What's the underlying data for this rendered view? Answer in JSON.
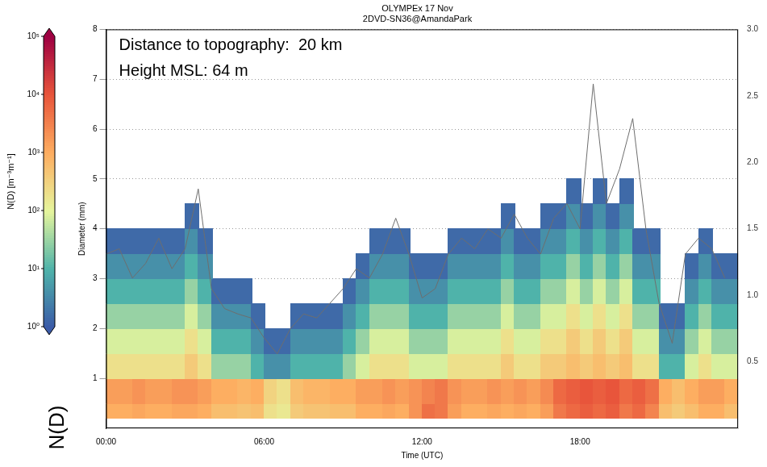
{
  "chart_data": {
    "type": "heatmap",
    "title": "OLYMPEx 17 Nov",
    "subtitle": "2DVD-SN36@AmandaPark",
    "annotations": [
      "Distance to topography:  20 km",
      "Height MSL: 64 m"
    ],
    "side_label": "N(D)",
    "x_label": "Time (UTC)",
    "y_label": "Diameter (mm)",
    "xlim": [
      0,
      24
    ],
    "xticks": [
      {
        "value": 0,
        "label": "00:00"
      },
      {
        "value": 6,
        "label": "06:00"
      },
      {
        "value": 12,
        "label": "12:00"
      },
      {
        "value": 18,
        "label": "18:00"
      }
    ],
    "ylim": [
      0,
      8
    ],
    "yticks": [
      1,
      2,
      3,
      4,
      5,
      6,
      7,
      8
    ],
    "y2lim": [
      0,
      3
    ],
    "y2ticks": [
      0.5,
      {
        "value": 1,
        "label": "1.0"
      },
      1.5,
      {
        "value": 2,
        "label": "2.0"
      },
      2.5,
      {
        "value": 3,
        "label": "3.0"
      }
    ],
    "grid": "y",
    "x_edges": [
      0,
      0.5,
      1,
      1.5,
      2,
      2.5,
      3,
      3.5,
      4,
      4.5,
      5,
      5.5,
      6,
      6.5,
      7,
      7.5,
      8,
      8.5,
      9,
      9.5,
      10,
      10.5,
      11,
      11.5,
      12,
      12.5,
      13,
      13.5,
      14,
      14.5,
      15,
      15.5,
      16,
      16.5,
      17,
      17.5,
      18,
      18.5,
      19,
      19.5,
      20,
      20.5,
      21,
      21.5,
      22,
      22.5,
      23,
      23.5,
      24
    ],
    "y_edges": [
      0.2,
      0.5,
      1,
      1.5,
      2,
      2.5,
      3,
      3.5,
      4,
      4.5,
      5
    ],
    "z": [
      [
        1000,
        1000,
        1200,
        1000,
        1000,
        1200,
        1200,
        1000,
        600,
        600,
        500,
        600,
        200,
        150,
        400,
        500,
        500,
        600,
        600,
        1000,
        1000,
        1200,
        1000,
        2000,
        5000,
        4000,
        1500,
        1000,
        1000,
        1200,
        1000,
        1200,
        1000,
        1500,
        4000,
        6000,
        8000,
        6000,
        8000,
        4000,
        6000,
        3000,
        600,
        400,
        600,
        1000,
        1000,
        600
      ],
      [
        1500,
        1500,
        2000,
        1500,
        1500,
        2000,
        2000,
        1500,
        1000,
        1000,
        800,
        1000,
        300,
        200,
        600,
        800,
        800,
        1000,
        1000,
        1500,
        1500,
        2000,
        1500,
        2000,
        3000,
        4000,
        2000,
        1500,
        1500,
        2000,
        1500,
        2000,
        1500,
        2500,
        6000,
        8000,
        10000,
        8000,
        10000,
        6000,
        8000,
        5000,
        1000,
        600,
        1000,
        1500,
        1500,
        1000
      ],
      [
        200,
        200,
        200,
        200,
        200,
        200,
        400,
        200,
        30,
        30,
        30,
        10,
        4,
        4,
        10,
        10,
        10,
        10,
        30,
        80,
        200,
        200,
        200,
        80,
        80,
        80,
        200,
        200,
        200,
        200,
        400,
        200,
        200,
        400,
        400,
        600,
        400,
        600,
        400,
        600,
        200,
        200,
        10,
        10,
        80,
        200,
        80,
        80
      ],
      [
        80,
        80,
        80,
        80,
        80,
        80,
        200,
        80,
        10,
        10,
        10,
        4,
        1.5,
        1.5,
        4,
        4,
        4,
        4,
        10,
        30,
        80,
        80,
        80,
        30,
        30,
        30,
        80,
        80,
        80,
        80,
        200,
        80,
        80,
        200,
        200,
        400,
        200,
        400,
        200,
        400,
        80,
        80,
        4,
        4,
        30,
        80,
        30,
        30
      ],
      [
        30,
        30,
        30,
        30,
        30,
        30,
        80,
        30,
        4,
        4,
        4,
        1.5,
        null,
        null,
        1.5,
        1.5,
        1.5,
        1.5,
        4,
        10,
        30,
        30,
        30,
        10,
        10,
        10,
        30,
        30,
        30,
        30,
        80,
        30,
        30,
        80,
        80,
        200,
        80,
        200,
        80,
        200,
        30,
        30,
        1.5,
        1.5,
        10,
        30,
        10,
        10
      ],
      [
        10,
        10,
        10,
        10,
        10,
        10,
        30,
        10,
        1.5,
        1.5,
        1.5,
        null,
        null,
        null,
        null,
        null,
        null,
        null,
        1.5,
        4,
        10,
        10,
        10,
        4,
        4,
        4,
        10,
        10,
        10,
        10,
        30,
        10,
        10,
        30,
        30,
        80,
        30,
        80,
        30,
        80,
        10,
        10,
        null,
        null,
        4,
        10,
        4,
        4
      ],
      [
        4,
        4,
        4,
        4,
        4,
        4,
        10,
        4,
        null,
        null,
        null,
        null,
        null,
        null,
        null,
        null,
        null,
        null,
        null,
        1.5,
        4,
        4,
        4,
        1.5,
        1.5,
        1.5,
        4,
        4,
        4,
        4,
        10,
        4,
        4,
        10,
        10,
        30,
        10,
        30,
        10,
        30,
        4,
        4,
        null,
        null,
        1.5,
        4,
        1.5,
        1.5
      ],
      [
        1.5,
        1.5,
        1.5,
        1.5,
        1.5,
        1.5,
        4,
        1.5,
        null,
        null,
        null,
        null,
        null,
        null,
        null,
        null,
        null,
        null,
        null,
        null,
        1.5,
        1.5,
        1.5,
        null,
        null,
        null,
        1.5,
        1.5,
        1.5,
        1.5,
        4,
        1.5,
        1.5,
        4,
        4,
        10,
        4,
        10,
        4,
        10,
        1.5,
        1.5,
        null,
        null,
        null,
        1.5,
        null,
        null
      ],
      [
        null,
        null,
        null,
        null,
        null,
        null,
        1.5,
        null,
        null,
        null,
        null,
        null,
        null,
        null,
        null,
        null,
        null,
        null,
        null,
        null,
        null,
        null,
        null,
        null,
        null,
        null,
        null,
        null,
        null,
        null,
        1.5,
        null,
        null,
        1.5,
        1.5,
        4,
        1.5,
        4,
        1.5,
        4,
        null,
        null,
        null,
        null,
        null,
        null,
        null,
        null
      ],
      [
        null,
        null,
        null,
        null,
        null,
        null,
        null,
        null,
        null,
        null,
        null,
        null,
        null,
        null,
        null,
        null,
        null,
        null,
        null,
        null,
        null,
        null,
        null,
        null,
        null,
        null,
        null,
        null,
        null,
        null,
        null,
        null,
        null,
        null,
        null,
        1.5,
        null,
        1.5,
        null,
        1.5,
        null,
        null,
        null,
        null,
        null,
        null,
        null,
        null
      ]
    ],
    "colorbar": {
      "label": "N(D) [m⁻³m⁻¹]",
      "log": true,
      "range": [
        1,
        100000
      ],
      "ticks": [
        {
          "value": 1,
          "label": "10⁰"
        },
        {
          "value": 10,
          "label": "10¹"
        },
        {
          "value": 100,
          "label": "10²"
        },
        {
          "value": 1000,
          "label": "10³"
        },
        {
          "value": 10000,
          "label": "10⁴"
        },
        {
          "value": 100000,
          "label": "10⁵"
        }
      ]
    },
    "line": {
      "type": "line",
      "color": "#6e6e6e",
      "axis": "y2",
      "x": [
        0,
        0.5,
        1,
        1.5,
        2,
        2.5,
        3,
        3.5,
        4,
        4.5,
        5,
        5.5,
        6,
        6.5,
        7,
        7.5,
        8,
        8.5,
        9,
        9.5,
        10,
        10.5,
        11,
        11.5,
        12,
        12.5,
        13,
        13.5,
        14,
        14.5,
        15,
        15.5,
        16,
        16.5,
        17,
        17.5,
        18,
        18.5,
        19,
        19.5,
        20,
        20.5,
        21,
        21.5,
        22,
        22.5,
        23,
        23.5
      ],
      "values": [
        1.31,
        1.35,
        1.13,
        1.24,
        1.43,
        1.2,
        1.35,
        1.8,
        1.05,
        0.9,
        0.86,
        0.83,
        0.68,
        0.56,
        0.75,
        0.86,
        0.83,
        0.94,
        1.05,
        1.2,
        1.13,
        1.31,
        1.58,
        1.31,
        0.98,
        1.05,
        1.31,
        1.43,
        1.35,
        1.5,
        1.43,
        1.61,
        1.43,
        1.31,
        1.58,
        1.69,
        1.5,
        2.59,
        1.69,
        1.95,
        2.33,
        1.5,
        0.94,
        0.64,
        1.31,
        1.43,
        1.35,
        1.13
      ]
    }
  }
}
